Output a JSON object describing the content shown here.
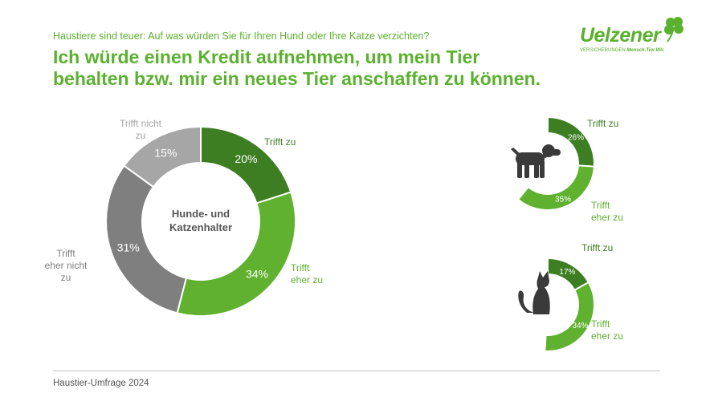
{
  "header": {
    "subtitle": "Haustiere sind teuer: Auf was würden Sie für Ihren Hund oder Ihre Katze verzichten?",
    "title": "Ich würde einen Kredit aufnehmen, um mein Tier behalten bzw. mir ein neues Tier anschaffen zu können."
  },
  "logo": {
    "word": "Uelzener",
    "tagline_prefix": "VERSICHERUNGEN",
    "tagline_claim": "Mensch.Tier.Wir."
  },
  "footer": {
    "source": "Haustier-Umfrage 2024"
  },
  "colors": {
    "dark_green": "#3d7e22",
    "light_green": "#5fb12f",
    "dark_gray": "#7f7f7f",
    "light_gray": "#a6a6a6",
    "pictogram": "#3a3a3a"
  },
  "chart_data": [
    {
      "type": "pie",
      "variant": "donut",
      "center_label": [
        "Hunde- und",
        "Katzenhalter"
      ],
      "slices": [
        {
          "label": [
            "Trifft zu"
          ],
          "value": 20,
          "display": "20%",
          "color": "#3d7e22"
        },
        {
          "label": [
            "Trifft",
            "eher zu"
          ],
          "value": 34,
          "display": "34%",
          "color": "#5fb12f"
        },
        {
          "label": [
            "Trifft",
            "eher nicht",
            "zu"
          ],
          "value": 31,
          "display": "31%",
          "color": "#7f7f7f"
        },
        {
          "label": [
            "Trifft nicht",
            "zu"
          ],
          "value": 15,
          "display": "15%",
          "color": "#a6a6a6"
        }
      ]
    },
    {
      "type": "pie",
      "variant": "donut",
      "icon": "dog-icon",
      "slices": [
        {
          "label": [
            "Trifft zu"
          ],
          "value": 26,
          "display": "26%",
          "color": "#3d7e22"
        },
        {
          "label": [
            "Trifft",
            "eher zu"
          ],
          "value": 35,
          "display": "35%",
          "color": "#5fb12f"
        }
      ]
    },
    {
      "type": "pie",
      "variant": "donut",
      "icon": "cat-icon",
      "slices": [
        {
          "label": [
            "Trifft zu"
          ],
          "value": 17,
          "display": "17%",
          "color": "#3d7e22"
        },
        {
          "label": [
            "Trifft",
            "eher zu"
          ],
          "value": 34,
          "display": "34%",
          "color": "#5fb12f"
        }
      ]
    }
  ]
}
